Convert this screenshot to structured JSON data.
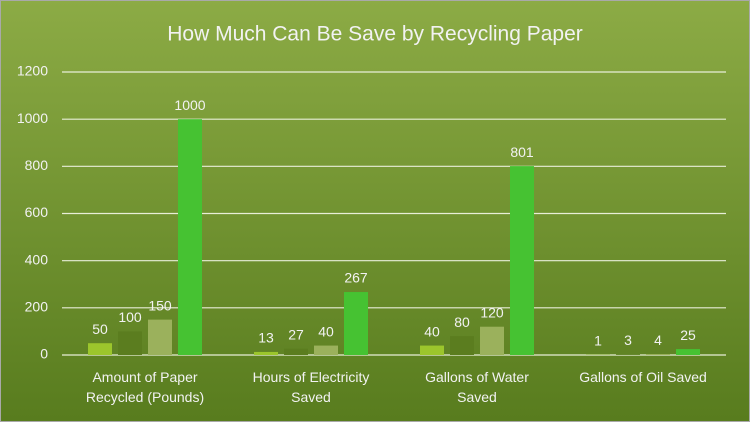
{
  "chart_data": {
    "type": "bar",
    "title": "How Much Can Be Save by Recycling Paper",
    "categories": [
      "Amount of Paper Recycled (Pounds)",
      "Hours of Electricity Saved",
      "Gallons of Water Saved",
      "Gallons of Oil Saved"
    ],
    "series": [
      {
        "color": "#9cc62c",
        "values": [
          50,
          13,
          40,
          1
        ]
      },
      {
        "color": "#5b7d1f",
        "values": [
          100,
          27,
          80,
          3
        ]
      },
      {
        "color": "#9bb15c",
        "values": [
          150,
          40,
          120,
          4
        ]
      },
      {
        "color": "#46c232",
        "values": [
          1000,
          267,
          801,
          25
        ]
      }
    ],
    "ylim": [
      0,
      1200
    ],
    "yticks": [
      0,
      200,
      400,
      600,
      800,
      1000,
      1200
    ],
    "grid": true
  }
}
